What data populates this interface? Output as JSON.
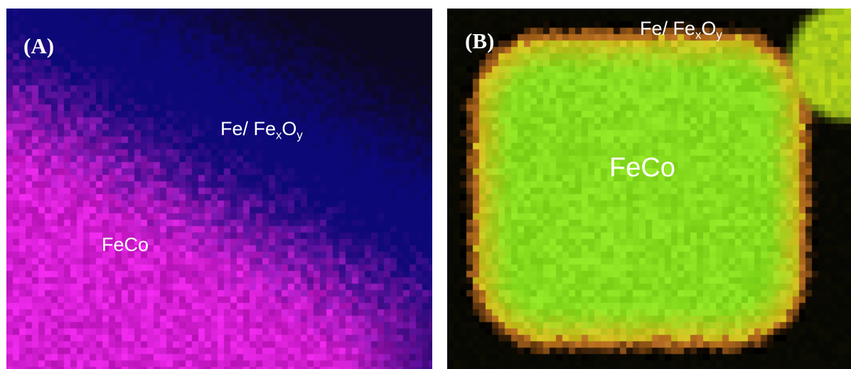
{
  "panels": [
    {
      "id": "A",
      "label": "(A)",
      "oxide_label": {
        "text": "Fe/ Fe",
        "sub1": "x",
        "mid": "O",
        "sub2": "y"
      },
      "core_label": "FeCo",
      "colors": {
        "oxide_shell": "#0a0a6e",
        "core": "#d21ed2",
        "background": "#050414"
      }
    },
    {
      "id": "B",
      "label": "(B)",
      "oxide_label": {
        "text": "Fe/ Fe",
        "sub1": "x",
        "mid": "O",
        "sub2": "y"
      },
      "core_label": "FeCo",
      "colors": {
        "core": "#7ed21a",
        "rim": "#c8c81e",
        "background": "#070603"
      }
    }
  ]
}
